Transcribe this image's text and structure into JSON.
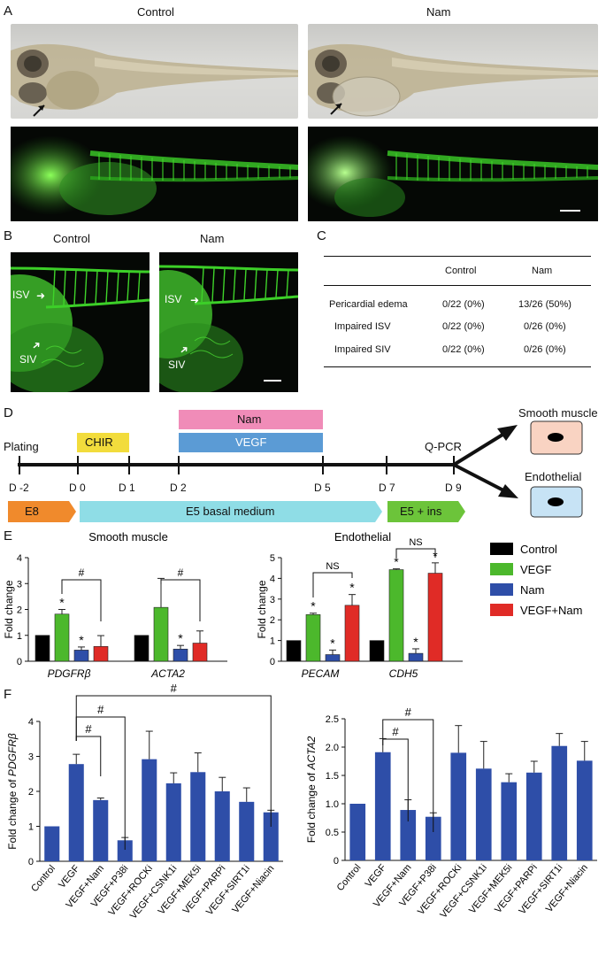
{
  "panelA": {
    "label": "A",
    "titles": [
      "Control",
      "Nam"
    ]
  },
  "panelB": {
    "label": "B",
    "titles": [
      "Control",
      "Nam"
    ],
    "isv": "ISV",
    "siv": "SIV"
  },
  "panelC": {
    "label": "C",
    "headers": [
      "",
      "Control",
      "Nam"
    ],
    "rows": [
      [
        "Pericardial edema",
        "0/22 (0%)",
        "13/26 (50%)"
      ],
      [
        "Impaired ISV",
        "0/22 (0%)",
        "0/26 (0%)"
      ],
      [
        "Impaired SIV",
        "0/22 (0%)",
        "0/26 (0%)"
      ]
    ]
  },
  "panelD": {
    "label": "D",
    "plating": "Plating",
    "chir": "CHIR",
    "nam": "Nam",
    "vegf": "VEGF",
    "qpcr": "Q-PCR",
    "days": [
      "D -2",
      "D 0",
      "D 1",
      "D 2",
      "D 5",
      "D 7",
      "D 9"
    ],
    "media": [
      "E8",
      "E5 basal medium",
      "E5 + ins"
    ],
    "outcomes": [
      "Smooth muscle",
      "Endothelial"
    ],
    "colors": {
      "chir": "#f2dc3c",
      "nam": "#f08cb8",
      "vegf": "#5b9bd5",
      "e8": "#f08a2c",
      "e5": "#8fdde6",
      "e5ins": "#6cc43a",
      "smooth": "#f9d3c2",
      "endo": "#c7e3f5"
    }
  },
  "panelE": {
    "label": "E",
    "groups": [
      "Smooth muscle",
      "Endothelial"
    ],
    "legend": [
      "Control",
      "VEGF",
      "Nam",
      "VEGF+Nam"
    ],
    "colors": [
      "#000000",
      "#4cb82c",
      "#2e4ea8",
      "#e02b26"
    ],
    "ylabel": "Fold change",
    "ns": "NS",
    "hash": "#",
    "star": "*"
  },
  "panelF": {
    "label": "F",
    "hash": "#",
    "color": "#2e4ea8"
  },
  "chart_data": [
    {
      "type": "bar",
      "title": "Smooth muscle",
      "ylabel": "Fold change",
      "ylim": [
        0,
        4
      ],
      "yticks": [
        "0",
        "1",
        "2",
        "3",
        "4"
      ],
      "categories": [
        "PDGFRβ",
        "ACTA2"
      ],
      "series": [
        {
          "name": "Control",
          "values": [
            1.0,
            1.0
          ],
          "errors": [
            0,
            0
          ]
        },
        {
          "name": "VEGF",
          "values": [
            1.82,
            2.08
          ],
          "errors": [
            0.18,
            1.12
          ]
        },
        {
          "name": "Nam",
          "values": [
            0.43,
            0.47
          ],
          "errors": [
            0.12,
            0.14
          ]
        },
        {
          "name": "VEGF+Nam",
          "values": [
            0.57,
            0.7
          ],
          "errors": [
            0.42,
            0.47
          ]
        }
      ]
    },
    {
      "type": "bar",
      "title": "Endothelial",
      "ylabel": "Fold change",
      "ylim": [
        0,
        5
      ],
      "yticks": [
        "0",
        "1",
        "2",
        "3",
        "4",
        "5"
      ],
      "categories": [
        "PECAM",
        "CDH5"
      ],
      "series": [
        {
          "name": "Control",
          "values": [
            1.0,
            1.0
          ],
          "errors": [
            0,
            0
          ]
        },
        {
          "name": "VEGF",
          "values": [
            2.25,
            4.42
          ],
          "errors": [
            0.07,
            0.04
          ]
        },
        {
          "name": "Nam",
          "values": [
            0.32,
            0.38
          ],
          "errors": [
            0.22,
            0.22
          ]
        },
        {
          "name": "VEGF+Nam",
          "values": [
            2.7,
            4.25
          ],
          "errors": [
            0.52,
            0.5
          ]
        }
      ]
    },
    {
      "type": "bar",
      "ylabel": "Fold change of PDGFRβ",
      "ylim": [
        0,
        4
      ],
      "yticks": [
        "0",
        "1",
        "2",
        "3",
        "4"
      ],
      "categories": [
        "Control",
        "VEGF",
        "VEGF+Nam",
        "VEGF+P38i",
        "VEGF+ROCKi",
        "VEGF+CSNK1i",
        "VEGF+MEK5i",
        "VEGF+PARPi",
        "VEGF+SIRT1i",
        "VEGF+Niacin"
      ],
      "values": [
        1.0,
        2.78,
        1.75,
        0.6,
        2.92,
        2.23,
        2.55,
        2.0,
        1.7,
        1.4
      ],
      "errors": [
        0,
        0.28,
        0.06,
        0.08,
        0.8,
        0.3,
        0.55,
        0.4,
        0.4,
        0.06
      ]
    },
    {
      "type": "bar",
      "ylabel": "Fold change of ACTA2",
      "ylim": [
        0,
        2.5
      ],
      "yticks": [
        "0",
        "0.5",
        "1.0",
        "1.5",
        "2.0",
        "2.5"
      ],
      "categories": [
        "Control",
        "VEGF",
        "VEGF+Nam",
        "VEGF+P38i",
        "VEGF+ROCKi",
        "VEGF+CSNK1i",
        "VEGF+MEK5i",
        "VEGF+PARPi",
        "VEGF+SIRT1i",
        "VEGF+Niacin"
      ],
      "values": [
        1.0,
        1.91,
        0.89,
        0.77,
        1.9,
        1.62,
        1.38,
        1.55,
        2.02,
        1.76
      ],
      "errors": [
        0,
        0.24,
        0.18,
        0.07,
        0.48,
        0.48,
        0.15,
        0.2,
        0.22,
        0.34
      ]
    }
  ]
}
